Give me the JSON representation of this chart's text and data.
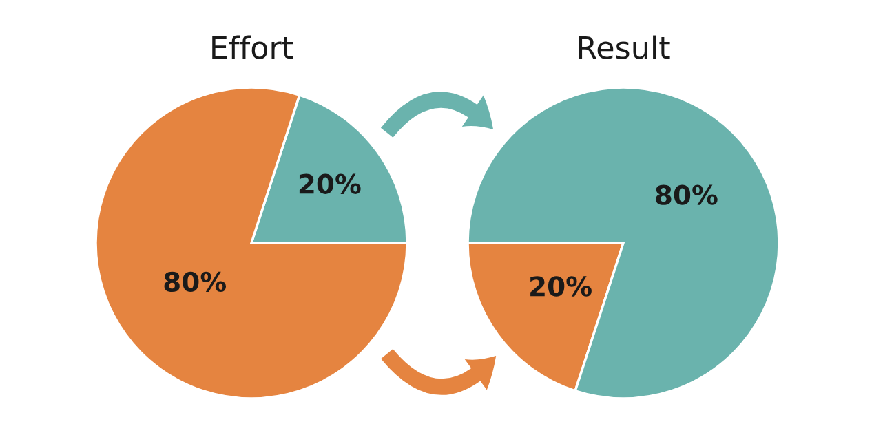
{
  "chart_data": [
    {
      "type": "pie",
      "title": "Effort",
      "categories": [
        null,
        null
      ],
      "values": [
        20,
        80
      ],
      "colors": [
        "#6ab3ad",
        "#e58440"
      ],
      "value_labels": [
        "20%",
        "80%"
      ]
    },
    {
      "type": "pie",
      "title": "Result",
      "categories": [
        null,
        null
      ],
      "values": [
        20,
        80
      ],
      "colors": [
        "#e58440",
        "#6ab3ad"
      ],
      "value_labels": [
        "20%",
        "80%"
      ]
    }
  ]
}
